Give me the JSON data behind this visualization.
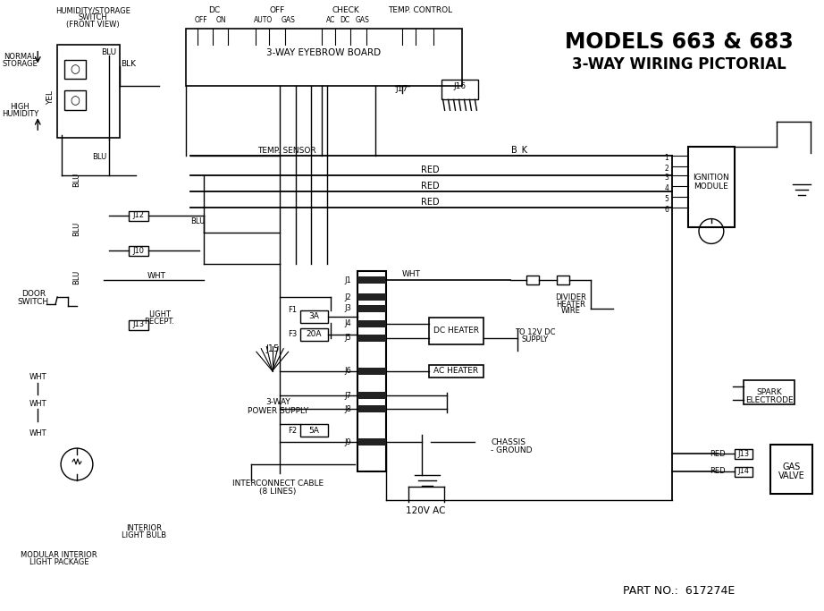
{
  "title1": "MODELS 663 & 683",
  "title2": "3-WAY WIRING PICTORIAL",
  "part_no": "PART NO.:  617274E",
  "bg_color": "#ffffff",
  "line_color": "#000000",
  "fig_width": 9.22,
  "fig_height": 6.83,
  "dpi": 100
}
